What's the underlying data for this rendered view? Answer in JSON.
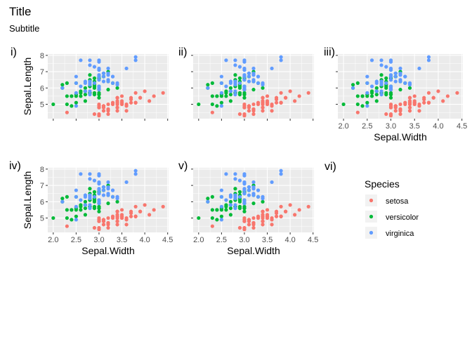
{
  "title": "Title",
  "subtitle": "Subtitle",
  "colors": {
    "setosa": "#F8766D",
    "versicolor": "#00BA38",
    "virginica": "#619CFF",
    "panel_bg": "#EBEBEB",
    "grid": "#FFFFFF",
    "axis_text": "#4D4D4D"
  },
  "legend": {
    "title": "Species",
    "items": [
      {
        "label": "setosa",
        "color": "#F8766D"
      },
      {
        "label": "versicolor",
        "color": "#00BA38"
      },
      {
        "label": "virginica",
        "color": "#619CFF"
      }
    ]
  },
  "chart_data": [
    {
      "type": "scatter",
      "tag": "i)",
      "xlabel": "",
      "ylabel": "Sepal.Length",
      "xlim": [
        1.88,
        4.52
      ],
      "ylim": [
        4.12,
        8.08
      ],
      "xticks": [
        2.0,
        2.5,
        3.0,
        3.5,
        4.0,
        4.5
      ],
      "yticks": [
        5,
        6,
        7,
        8
      ],
      "show_x_tick_labels": false,
      "show_y_tick_labels": true
    },
    {
      "type": "scatter",
      "tag": "ii)",
      "xlabel": "",
      "ylabel": "",
      "xlim": [
        1.88,
        4.52
      ],
      "ylim": [
        4.12,
        8.08
      ],
      "xticks": [
        2.0,
        2.5,
        3.0,
        3.5,
        4.0,
        4.5
      ],
      "yticks": [
        5,
        6,
        7,
        8
      ],
      "show_x_tick_labels": false,
      "show_y_tick_labels": false
    },
    {
      "type": "scatter",
      "tag": "iii)",
      "xlabel": "Sepal.Width",
      "ylabel": "",
      "xlim": [
        1.88,
        4.52
      ],
      "ylim": [
        4.12,
        8.08
      ],
      "xticks": [
        2.0,
        2.5,
        3.0,
        3.5,
        4.0,
        4.5
      ],
      "yticks": [
        5,
        6,
        7,
        8
      ],
      "show_x_tick_labels": true,
      "show_y_tick_labels": false
    },
    {
      "type": "scatter",
      "tag": "iv)",
      "xlabel": "Sepal.Width",
      "ylabel": "Sepal.Length",
      "xlim": [
        1.88,
        4.52
      ],
      "ylim": [
        4.12,
        8.08
      ],
      "xticks": [
        2.0,
        2.5,
        3.0,
        3.5,
        4.0,
        4.5
      ],
      "yticks": [
        5,
        6,
        7,
        8
      ],
      "show_x_tick_labels": true,
      "show_y_tick_labels": true
    },
    {
      "type": "scatter",
      "tag": "v)",
      "xlabel": "Sepal.Width",
      "ylabel": "",
      "xlim": [
        1.88,
        4.52
      ],
      "ylim": [
        4.12,
        8.08
      ],
      "xticks": [
        2.0,
        2.5,
        3.0,
        3.5,
        4.0,
        4.5
      ],
      "yticks": [
        5,
        6,
        7,
        8
      ],
      "show_x_tick_labels": true,
      "show_y_tick_labels": false
    }
  ],
  "empty_panel_tag": "vi)",
  "series": [
    {
      "name": "setosa",
      "x": [
        3.5,
        3.0,
        3.2,
        3.1,
        3.6,
        3.9,
        3.4,
        3.4,
        2.9,
        3.1,
        3.7,
        3.4,
        3.0,
        3.0,
        4.0,
        4.4,
        3.9,
        3.5,
        3.8,
        3.8,
        3.4,
        3.7,
        3.6,
        3.3,
        3.4,
        3.0,
        3.4,
        3.5,
        3.4,
        3.2,
        3.1,
        3.4,
        4.1,
        4.2,
        3.1,
        3.2,
        3.5,
        3.6,
        3.0,
        3.4,
        3.5,
        2.3,
        3.2,
        3.5,
        3.8,
        3.0,
        3.8,
        3.2,
        3.7,
        3.3
      ],
      "y": [
        5.1,
        4.9,
        4.7,
        4.6,
        5.0,
        5.4,
        4.6,
        5.0,
        4.4,
        4.9,
        5.4,
        4.8,
        4.8,
        4.3,
        5.8,
        5.7,
        5.4,
        5.1,
        5.7,
        5.1,
        5.4,
        5.1,
        4.6,
        5.1,
        4.8,
        5.0,
        5.0,
        5.2,
        5.2,
        4.7,
        4.8,
        5.4,
        5.2,
        5.5,
        4.9,
        5.0,
        5.5,
        4.9,
        4.4,
        5.1,
        5.0,
        4.5,
        4.4,
        5.0,
        5.1,
        4.8,
        5.1,
        4.6,
        5.3,
        5.0
      ]
    },
    {
      "name": "versicolor",
      "x": [
        3.2,
        3.2,
        3.1,
        2.3,
        2.8,
        2.8,
        3.3,
        2.4,
        2.9,
        2.7,
        2.0,
        3.0,
        2.2,
        2.9,
        2.9,
        3.1,
        3.0,
        2.7,
        2.2,
        2.5,
        3.2,
        2.8,
        2.5,
        2.8,
        2.9,
        3.0,
        2.8,
        3.0,
        2.9,
        2.6,
        2.4,
        2.4,
        2.7,
        2.7,
        3.0,
        3.4,
        3.1,
        2.3,
        3.0,
        2.5,
        2.6,
        3.0,
        2.6,
        2.3,
        2.7,
        3.0,
        2.9,
        2.9,
        2.5,
        2.8
      ],
      "y": [
        7.0,
        6.4,
        6.9,
        5.5,
        6.5,
        5.7,
        6.3,
        4.9,
        6.6,
        5.2,
        5.0,
        5.9,
        6.0,
        6.1,
        5.6,
        6.7,
        5.6,
        5.8,
        6.2,
        5.6,
        5.9,
        6.1,
        6.3,
        6.1,
        6.4,
        6.6,
        6.8,
        6.7,
        6.0,
        5.7,
        5.5,
        5.5,
        5.8,
        6.0,
        5.4,
        6.0,
        6.7,
        6.3,
        5.6,
        5.5,
        5.5,
        6.1,
        5.8,
        5.0,
        5.6,
        5.7,
        5.7,
        6.2,
        5.1,
        5.7
      ]
    },
    {
      "name": "virginica",
      "x": [
        3.3,
        2.7,
        3.0,
        2.9,
        3.0,
        3.0,
        2.5,
        2.9,
        2.5,
        3.6,
        3.2,
        2.7,
        3.0,
        2.5,
        2.8,
        3.2,
        3.0,
        3.8,
        2.6,
        2.2,
        3.2,
        2.8,
        2.8,
        2.7,
        3.3,
        3.2,
        2.8,
        3.0,
        2.8,
        3.0,
        2.8,
        3.8,
        2.8,
        2.8,
        2.6,
        3.0,
        3.4,
        3.1,
        3.0,
        3.1,
        3.1,
        3.1,
        2.7,
        3.2,
        3.3,
        3.0,
        2.5,
        3.0,
        3.4,
        3.0
      ],
      "y": [
        6.3,
        5.8,
        7.1,
        6.3,
        6.5,
        7.6,
        4.9,
        7.3,
        6.7,
        7.2,
        6.5,
        6.4,
        6.8,
        5.7,
        5.8,
        6.4,
        6.5,
        7.7,
        7.7,
        6.0,
        6.9,
        5.6,
        7.7,
        6.3,
        6.7,
        7.2,
        6.2,
        6.1,
        6.4,
        7.2,
        7.4,
        7.9,
        6.4,
        6.3,
        6.1,
        7.7,
        6.3,
        6.4,
        6.0,
        6.9,
        6.7,
        6.9,
        5.8,
        6.8,
        6.7,
        6.7,
        6.3,
        6.5,
        6.2,
        5.9
      ]
    }
  ]
}
